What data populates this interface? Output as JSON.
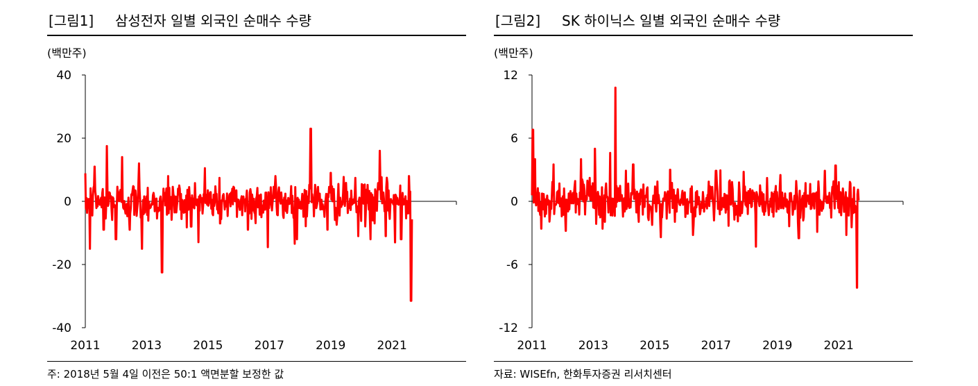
{
  "charts": [
    {
      "label": "[그림1]",
      "title": "삼성전자 일별 외국인 순매수 수량",
      "unit": "(백만주)",
      "note": "주: 2018년 5월 4일 이전은 50:1 액면분할 보정한 값"
    },
    {
      "label": "[그림2]",
      "title": "SK 하이닉스 일별 외국인 순매수 수량",
      "unit": "(백만주)",
      "note": "자료: WISEfn, 한화투자증권 리서치센터"
    }
  ],
  "chart_data": [
    {
      "type": "line",
      "title": "삼성전자 일별 외국인 순매수 수량",
      "ylabel": "(백만주)",
      "ylim": [
        -40,
        40
      ],
      "yticks": [
        40,
        20,
        0,
        -20,
        -40
      ],
      "xlim": [
        2011,
        2023.1
      ],
      "xticks": [
        2011,
        2013,
        2015,
        2017,
        2019,
        2021
      ],
      "color": "#ff0000",
      "grid": false,
      "noise_scale": 3.2,
      "x_end": 2021.65,
      "spikes": [
        {
          "x": 2011.15,
          "y": -15
        },
        {
          "x": 2011.3,
          "y": 11
        },
        {
          "x": 2011.6,
          "y": -9
        },
        {
          "x": 2011.7,
          "y": 17.5
        },
        {
          "x": 2012.0,
          "y": -12
        },
        {
          "x": 2012.2,
          "y": 14
        },
        {
          "x": 2012.45,
          "y": -9
        },
        {
          "x": 2012.75,
          "y": 12
        },
        {
          "x": 2012.85,
          "y": -15
        },
        {
          "x": 2013.5,
          "y": -22.5
        },
        {
          "x": 2013.7,
          "y": 8
        },
        {
          "x": 2014.45,
          "y": -8
        },
        {
          "x": 2014.9,
          "y": 10.5
        },
        {
          "x": 2015.4,
          "y": -7
        },
        {
          "x": 2016.3,
          "y": -9
        },
        {
          "x": 2016.95,
          "y": -14.5
        },
        {
          "x": 2017.2,
          "y": 8
        },
        {
          "x": 2017.9,
          "y": -12
        },
        {
          "x": 2018.35,
          "y": 23
        },
        {
          "x": 2018.9,
          "y": -9
        },
        {
          "x": 2019.0,
          "y": 9
        },
        {
          "x": 2019.9,
          "y": -11
        },
        {
          "x": 2020.3,
          "y": -12
        },
        {
          "x": 2020.6,
          "y": 16
        },
        {
          "x": 2020.8,
          "y": -11
        },
        {
          "x": 2021.1,
          "y": -13
        },
        {
          "x": 2021.3,
          "y": -12
        },
        {
          "x": 2021.55,
          "y": 8
        },
        {
          "x": 2021.62,
          "y": -31.5
        }
      ]
    },
    {
      "type": "line",
      "title": "SK 하이닉스 일별 외국인 순매수 수량",
      "ylabel": "(백만주)",
      "ylim": [
        -12,
        12
      ],
      "yticks": [
        12,
        6,
        0,
        -6,
        -12
      ],
      "xlim": [
        2011,
        2023.1
      ],
      "xticks": [
        2011,
        2013,
        2015,
        2017,
        2019,
        2021
      ],
      "color": "#ff0000",
      "grid": false,
      "noise_scale": 0.95,
      "x_end": 2021.65,
      "spikes": [
        {
          "x": 2011.03,
          "y": 6.8
        },
        {
          "x": 2011.1,
          "y": 4
        },
        {
          "x": 2011.3,
          "y": -2.6
        },
        {
          "x": 2011.7,
          "y": 3.5
        },
        {
          "x": 2012.1,
          "y": -2.8
        },
        {
          "x": 2012.6,
          "y": 4
        },
        {
          "x": 2013.05,
          "y": 5
        },
        {
          "x": 2013.3,
          "y": -2.6
        },
        {
          "x": 2013.55,
          "y": 4.6
        },
        {
          "x": 2013.72,
          "y": 10.8
        },
        {
          "x": 2014.3,
          "y": 3.5
        },
        {
          "x": 2015.2,
          "y": -3.4
        },
        {
          "x": 2015.5,
          "y": 3
        },
        {
          "x": 2016.25,
          "y": -3.2
        },
        {
          "x": 2017.0,
          "y": 2.9
        },
        {
          "x": 2017.9,
          "y": 2.8
        },
        {
          "x": 2018.3,
          "y": -4.3
        },
        {
          "x": 2019.1,
          "y": 2.5
        },
        {
          "x": 2019.7,
          "y": -3.5
        },
        {
          "x": 2020.3,
          "y": -2.9
        },
        {
          "x": 2020.55,
          "y": 2.9
        },
        {
          "x": 2020.9,
          "y": 3.4
        },
        {
          "x": 2021.25,
          "y": -3.2
        },
        {
          "x": 2021.6,
          "y": -8.2
        }
      ]
    }
  ]
}
